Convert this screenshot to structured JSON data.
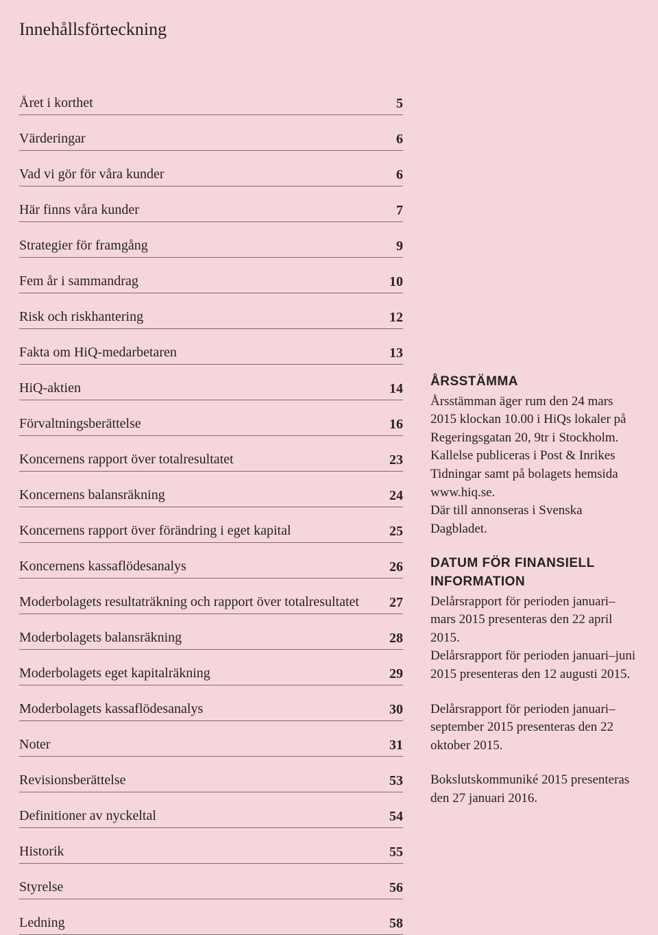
{
  "title": "Innehållsförteckning",
  "toc": [
    {
      "label": "Året i korthet",
      "page": "5"
    },
    {
      "label": "Värderingar",
      "page": "6"
    },
    {
      "label": "Vad vi gör för våra kunder",
      "page": "6"
    },
    {
      "label": "Här finns våra kunder",
      "page": "7"
    },
    {
      "label": "Strategier för framgång",
      "page": "9"
    },
    {
      "label": "Fem år i sammandrag",
      "page": "10"
    },
    {
      "label": "Risk och riskhantering",
      "page": "12"
    },
    {
      "label": "Fakta om HiQ-medarbetaren",
      "page": "13"
    },
    {
      "label": "HiQ-aktien",
      "page": "14"
    },
    {
      "label": "Förvaltningsberättelse",
      "page": "16"
    },
    {
      "label": "Koncernens rapport över totalresultatet",
      "page": "23"
    },
    {
      "label": "Koncernens balansräkning",
      "page": "24"
    },
    {
      "label": "Koncernens rapport över förändring i eget kapital",
      "page": "25"
    },
    {
      "label": "Koncernens kassaflödesanalys",
      "page": "26"
    },
    {
      "label": "Moderbolagets resultaträkning och rapport över totalresultatet",
      "page": "27"
    },
    {
      "label": "Moderbolagets balansräkning",
      "page": "28"
    },
    {
      "label": "Moderbolagets eget kapitalräkning",
      "page": "29"
    },
    {
      "label": "Moderbolagets kassaflödesanalys",
      "page": "30"
    },
    {
      "label": "Noter",
      "page": "31"
    },
    {
      "label": "Revisionsberättelse",
      "page": "53"
    },
    {
      "label": "Definitioner av nyckeltal",
      "page": "54"
    },
    {
      "label": "Historik",
      "page": "55"
    },
    {
      "label": "Styrelse",
      "page": "56"
    },
    {
      "label": "Ledning",
      "page": "58"
    }
  ],
  "side": {
    "h1": "ÅRSSTÄMMA",
    "p1": "Årsstämman äger rum den 24 mars 2015 klockan 10.00 i HiQs lokaler på Regeringsgatan 20, 9tr i Stockholm. Kallelse publiceras i Post & Inrikes Tidningar samt på bolagets hemsida www.hiq.se.",
    "p1b": "Där till annonseras i Svenska Dagbladet.",
    "h2a": "DATUM FÖR FINANSIELL",
    "h2b": "INFORMATION",
    "p2": "Delårsrapport för perioden januari– mars 2015 presenteras den 22 april 2015.",
    "p3": "Delårsrapport för perioden januari–juni 2015 presenteras den 12 augusti 2015.",
    "p4": "Delårsrapport för perioden januari–september 2015 presenteras den 22 oktober 2015.",
    "p5": "Bokslutskommuniké 2015 presenteras den 27 januari 2016."
  }
}
